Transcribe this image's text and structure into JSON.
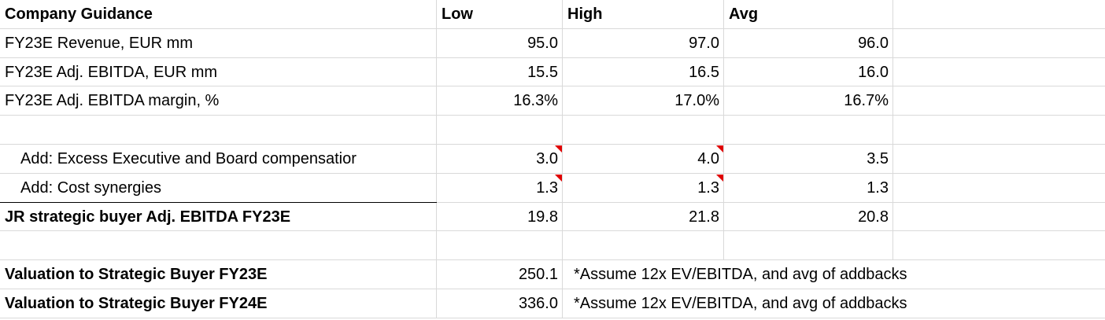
{
  "table": {
    "header": [
      "Company Guidance",
      "Low",
      "High",
      "Avg"
    ],
    "guidance": [
      [
        "FY23E Revenue, EUR mm",
        "95.0",
        "97.0",
        "96.0"
      ],
      [
        "FY23E Adj. EBITDA, EUR mm",
        "15.5",
        "16.5",
        "16.0"
      ],
      [
        "FY23E Adj. EBITDA margin, %",
        "16.3%",
        "17.0%",
        "16.7%"
      ]
    ],
    "addbacks": [
      [
        "Add: Excess Executive and Board compensatior",
        "3.0",
        "4.0",
        "3.5"
      ],
      [
        "Add: Cost synergies",
        "1.3",
        "1.3",
        "1.3"
      ]
    ],
    "total": [
      "JR strategic buyer Adj. EBITDA FY23E",
      "19.8",
      "21.8",
      "20.8"
    ],
    "valuations": [
      [
        "Valuation to Strategic Buyer FY23E",
        "250.1",
        "*Assume 12x EV/EBITDA, and avg of addbacks"
      ],
      [
        "Valuation to Strategic Buyer FY24E",
        "336.0",
        "*Assume 12x EV/EBITDA, and avg of addbacks"
      ]
    ]
  }
}
